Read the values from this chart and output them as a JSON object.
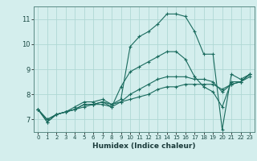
{
  "title": "",
  "xlabel": "Humidex (Indice chaleur)",
  "ylabel": "",
  "background_color": "#d4eeed",
  "grid_color": "#afd8d4",
  "line_color": "#1a6b5e",
  "xlim": [
    -0.5,
    23.5
  ],
  "ylim": [
    6.5,
    11.5
  ],
  "yticks": [
    7,
    8,
    9,
    10,
    11
  ],
  "xticks": [
    0,
    1,
    2,
    3,
    4,
    5,
    6,
    7,
    8,
    9,
    10,
    11,
    12,
    13,
    14,
    15,
    16,
    17,
    18,
    19,
    20,
    21,
    22,
    23
  ],
  "lines": [
    {
      "x": [
        0,
        1,
        2,
        3,
        4,
        5,
        6,
        7,
        8,
        9,
        10,
        11,
        12,
        13,
        14,
        15,
        16,
        17,
        18,
        19,
        20,
        21,
        22,
        23
      ],
      "y": [
        7.4,
        6.9,
        7.2,
        7.3,
        7.5,
        7.7,
        7.7,
        7.8,
        7.6,
        7.8,
        9.9,
        10.3,
        10.5,
        10.8,
        11.2,
        11.2,
        11.1,
        10.5,
        9.6,
        9.6,
        6.6,
        8.8,
        8.6,
        8.8
      ]
    },
    {
      "x": [
        0,
        1,
        2,
        3,
        4,
        5,
        6,
        7,
        8,
        9,
        10,
        11,
        12,
        13,
        14,
        15,
        16,
        17,
        18,
        19,
        20,
        21,
        22,
        23
      ],
      "y": [
        7.4,
        6.9,
        7.2,
        7.3,
        7.4,
        7.6,
        7.6,
        7.7,
        7.5,
        8.3,
        8.9,
        9.1,
        9.3,
        9.5,
        9.7,
        9.7,
        9.4,
        8.7,
        8.3,
        8.1,
        7.5,
        8.5,
        8.5,
        8.8
      ]
    },
    {
      "x": [
        0,
        1,
        2,
        3,
        4,
        5,
        6,
        7,
        8,
        9,
        10,
        11,
        12,
        13,
        14,
        15,
        16,
        17,
        18,
        19,
        20,
        21,
        22,
        23
      ],
      "y": [
        7.4,
        7.0,
        7.2,
        7.3,
        7.4,
        7.6,
        7.6,
        7.7,
        7.6,
        7.7,
        8.0,
        8.2,
        8.4,
        8.6,
        8.7,
        8.7,
        8.7,
        8.6,
        8.6,
        8.5,
        8.1,
        8.4,
        8.5,
        8.8
      ]
    },
    {
      "x": [
        0,
        1,
        2,
        3,
        4,
        5,
        6,
        7,
        8,
        9,
        10,
        11,
        12,
        13,
        14,
        15,
        16,
        17,
        18,
        19,
        20,
        21,
        22,
        23
      ],
      "y": [
        7.4,
        7.0,
        7.2,
        7.3,
        7.4,
        7.5,
        7.6,
        7.6,
        7.5,
        7.7,
        7.8,
        7.9,
        8.0,
        8.2,
        8.3,
        8.3,
        8.4,
        8.4,
        8.4,
        8.4,
        8.2,
        8.4,
        8.5,
        8.7
      ]
    }
  ]
}
